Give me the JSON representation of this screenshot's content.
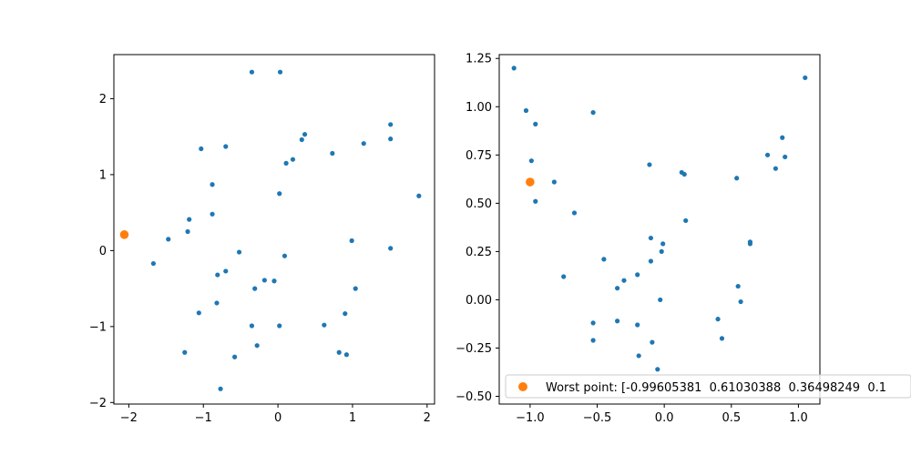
{
  "chart_data": [
    {
      "type": "scatter",
      "xlim": [
        -2.2,
        2.1
      ],
      "ylim": [
        -2.02,
        2.58
      ],
      "xticks": [
        {
          "value": -2,
          "label": "−2"
        },
        {
          "value": -1,
          "label": "−1"
        },
        {
          "value": 0,
          "label": "0"
        },
        {
          "value": 1,
          "label": "1"
        },
        {
          "value": 2,
          "label": "2"
        }
      ],
      "yticks": [
        {
          "value": -2,
          "label": "−2"
        },
        {
          "value": -1,
          "label": "−1"
        },
        {
          "value": 0,
          "label": "0"
        },
        {
          "value": 1,
          "label": "1"
        },
        {
          "value": 2,
          "label": "2"
        }
      ],
      "grid": false,
      "series": [
        {
          "color": "#1f77b4",
          "marker": "small-dot",
          "points": [
            [
              -0.35,
              2.35
            ],
            [
              0.03,
              2.35
            ],
            [
              1.51,
              1.66
            ],
            [
              0.36,
              1.53
            ],
            [
              -1.03,
              1.34
            ],
            [
              -0.7,
              1.37
            ],
            [
              0.32,
              1.46
            ],
            [
              1.51,
              1.47
            ],
            [
              1.15,
              1.41
            ],
            [
              0.73,
              1.28
            ],
            [
              0.2,
              1.2
            ],
            [
              0.11,
              1.15
            ],
            [
              -0.88,
              0.87
            ],
            [
              0.02,
              0.75
            ],
            [
              1.89,
              0.72
            ],
            [
              -0.88,
              0.48
            ],
            [
              -1.19,
              0.41
            ],
            [
              -1.21,
              0.25
            ],
            [
              -1.47,
              0.15
            ],
            [
              0.99,
              0.13
            ],
            [
              -0.52,
              -0.02
            ],
            [
              1.51,
              0.03
            ],
            [
              0.09,
              -0.07
            ],
            [
              -1.67,
              -0.17
            ],
            [
              -0.7,
              -0.27
            ],
            [
              -0.81,
              -0.32
            ],
            [
              -0.18,
              -0.39
            ],
            [
              -0.05,
              -0.4
            ],
            [
              -0.31,
              -0.5
            ],
            [
              1.04,
              -0.5
            ],
            [
              -0.82,
              -0.69
            ],
            [
              -1.06,
              -0.82
            ],
            [
              0.9,
              -0.83
            ],
            [
              -0.35,
              -0.99
            ],
            [
              0.02,
              -0.99
            ],
            [
              0.62,
              -0.98
            ],
            [
              -0.28,
              -1.25
            ],
            [
              -1.25,
              -1.34
            ],
            [
              0.82,
              -1.34
            ],
            [
              0.92,
              -1.37
            ],
            [
              -0.58,
              -1.4
            ],
            [
              -0.77,
              -1.82
            ]
          ]
        },
        {
          "color": "#ff7f0e",
          "marker": "large-dot",
          "points": [
            [
              -2.06,
              0.21
            ]
          ]
        }
      ]
    },
    {
      "type": "scatter",
      "xlim": [
        -1.23,
        1.16
      ],
      "ylim": [
        -0.54,
        1.27
      ],
      "xticks": [
        {
          "value": -1.0,
          "label": "−1.0"
        },
        {
          "value": -0.5,
          "label": "−0.5"
        },
        {
          "value": 0.0,
          "label": "0.0"
        },
        {
          "value": 0.5,
          "label": "0.5"
        },
        {
          "value": 1.0,
          "label": "1.0"
        }
      ],
      "yticks": [
        {
          "value": -0.5,
          "label": "−0.50"
        },
        {
          "value": -0.25,
          "label": "−0.25"
        },
        {
          "value": 0.0,
          "label": "0.00"
        },
        {
          "value": 0.25,
          "label": "0.25"
        },
        {
          "value": 0.5,
          "label": "0.50"
        },
        {
          "value": 0.75,
          "label": "0.75"
        },
        {
          "value": 1.0,
          "label": "1.00"
        },
        {
          "value": 1.25,
          "label": "1.25"
        }
      ],
      "grid": false,
      "legend": {
        "placement": "lower-right",
        "entries": [
          {
            "label": "Worst point: [-0.99605381  0.61030388  0.36498249  0.1",
            "color": "#ff7f0e"
          }
        ]
      },
      "series": [
        {
          "color": "#1f77b4",
          "marker": "small-dot",
          "points": [
            [
              -1.12,
              1.2
            ],
            [
              1.05,
              1.15
            ],
            [
              -1.03,
              0.98
            ],
            [
              -0.53,
              0.97
            ],
            [
              -0.96,
              0.91
            ],
            [
              0.88,
              0.84
            ],
            [
              0.77,
              0.75
            ],
            [
              0.9,
              0.74
            ],
            [
              -0.99,
              0.72
            ],
            [
              -0.11,
              0.7
            ],
            [
              0.83,
              0.68
            ],
            [
              0.13,
              0.66
            ],
            [
              0.15,
              0.65
            ],
            [
              0.54,
              0.63
            ],
            [
              -0.82,
              0.61
            ],
            [
              -0.96,
              0.51
            ],
            [
              -0.67,
              0.45
            ],
            [
              0.16,
              0.41
            ],
            [
              -0.1,
              0.32
            ],
            [
              0.64,
              0.3
            ],
            [
              0.64,
              0.29
            ],
            [
              -0.01,
              0.29
            ],
            [
              -0.02,
              0.25
            ],
            [
              -0.45,
              0.21
            ],
            [
              -0.1,
              0.2
            ],
            [
              -0.2,
              0.13
            ],
            [
              -0.75,
              0.12
            ],
            [
              -0.3,
              0.1
            ],
            [
              -0.35,
              0.06
            ],
            [
              0.55,
              0.07
            ],
            [
              -0.03,
              0.0
            ],
            [
              0.57,
              -0.01
            ],
            [
              -0.53,
              -0.12
            ],
            [
              -0.35,
              -0.11
            ],
            [
              -0.2,
              -0.13
            ],
            [
              0.4,
              -0.1
            ],
            [
              0.43,
              -0.2
            ],
            [
              -0.53,
              -0.21
            ],
            [
              -0.09,
              -0.22
            ],
            [
              -0.19,
              -0.29
            ],
            [
              -0.05,
              -0.36
            ]
          ]
        },
        {
          "color": "#ff7f0e",
          "marker": "large-dot",
          "points": [
            [
              -1.0,
              0.61
            ]
          ]
        }
      ]
    }
  ]
}
